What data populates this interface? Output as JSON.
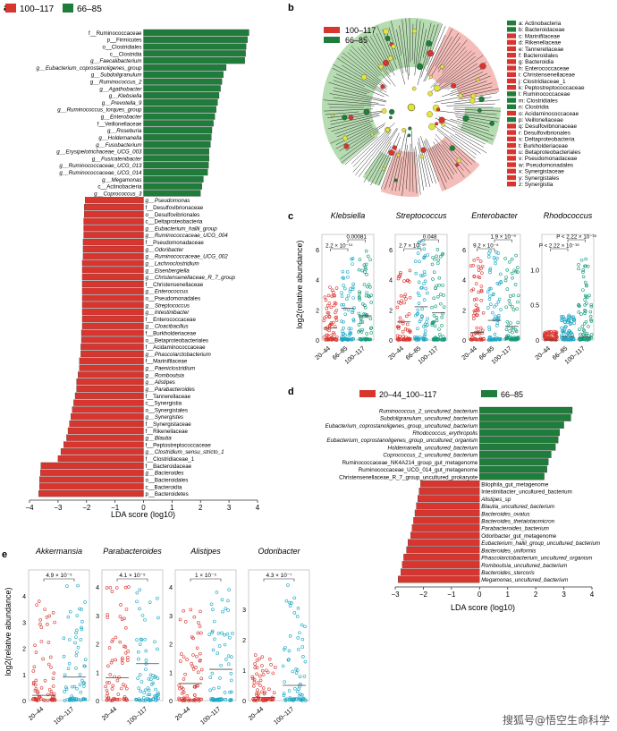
{
  "colors": {
    "red": "#d9352f",
    "green": "#1e7d3a",
    "blue": "#1aa6c4",
    "teal": "#12997a",
    "redLight": "#f2b2ad",
    "greenLight": "#a9d6a3",
    "yellow": "#e4e33a"
  },
  "watermark": "搜狐号@悟空生命科学",
  "panel_a": {
    "letter": "a",
    "legend": [
      "100–117",
      "66–85"
    ],
    "xlabel": "LDA score (log10)",
    "ticks": [
      "−4",
      "−3",
      "−2",
      "−1",
      "0",
      "1",
      "2",
      "3",
      "4"
    ]
  },
  "panel_b": {
    "letter": "b",
    "legend": [
      "100–117",
      "66–85"
    ],
    "key": [
      {
        "t": "a: Actinobacteria",
        "c": "green"
      },
      {
        "t": "b: Bacteroidaceae",
        "c": "green"
      },
      {
        "t": "c: Marinifilaceae",
        "c": "red"
      },
      {
        "t": "d: Rikenellaceae",
        "c": "red"
      },
      {
        "t": "e: Tannerellaceae",
        "c": "red"
      },
      {
        "t": "f: Bacteroidales",
        "c": "red"
      },
      {
        "t": "g: Bacteroidia",
        "c": "red"
      },
      {
        "t": "h: Enterococcaceae",
        "c": "red"
      },
      {
        "t": "i: Christensenellaceae",
        "c": "red"
      },
      {
        "t": "j: Clostridiaceae_1",
        "c": "red"
      },
      {
        "t": "k: Peptostreptococcaceae",
        "c": "red"
      },
      {
        "t": "l: Ruminococcaceae",
        "c": "green"
      },
      {
        "t": "m: Clostridiales",
        "c": "green"
      },
      {
        "t": "n: Clostridia",
        "c": "green"
      },
      {
        "t": "o: Acidaminococcaceae",
        "c": "red"
      },
      {
        "t": "p: Veillonellaceae",
        "c": "green"
      },
      {
        "t": "q: Desulfovibrionaceae",
        "c": "red"
      },
      {
        "t": "r: Desulfovibrionales",
        "c": "red"
      },
      {
        "t": "s: Deltaproteobacteria",
        "c": "red"
      },
      {
        "t": "t: Burkholderiaceae",
        "c": "red"
      },
      {
        "t": "u: Betaproteobacteriales",
        "c": "red"
      },
      {
        "t": "v: Pseudomonadaceae",
        "c": "red"
      },
      {
        "t": "w: Pseudomonadales",
        "c": "red"
      },
      {
        "t": "x: Synergistaceae",
        "c": "red"
      },
      {
        "t": "y: Synergistales",
        "c": "red"
      },
      {
        "t": "z: Synergistia",
        "c": "red"
      }
    ]
  },
  "panel_d": {
    "letter": "d",
    "legend": [
      "20–44_100–117",
      "66–85"
    ],
    "xlabel": "LDA score (log10)",
    "ticks": [
      "−3",
      "−2",
      "−1",
      "0",
      "1",
      "2",
      "3",
      "4"
    ]
  },
  "panel_c": {
    "letter": "c",
    "ylabel": "log2(relative abundance)",
    "groups": [
      "20–44",
      "66–85",
      "100–117"
    ],
    "subplots": [
      {
        "title": "Klebsiella",
        "ymax": 7,
        "ticks": [
          "0",
          "2",
          "4",
          "6"
        ],
        "tickVals": [
          0,
          2,
          4,
          6
        ],
        "pvals": [
          "2.2 × 10⁻¹⁴",
          "0.00081"
        ]
      },
      {
        "title": "Streptococcus",
        "ymax": 7,
        "ticks": [
          "0",
          "2",
          "4",
          "6"
        ],
        "tickVals": [
          0,
          2,
          4,
          6
        ],
        "pvals": [
          "2.7 × 10⁻¹⁰",
          "0.048"
        ]
      },
      {
        "title": "Enterobacter",
        "ymax": 7,
        "ticks": [
          "0",
          "2",
          "4",
          "6"
        ],
        "tickVals": [
          0,
          2,
          4,
          6
        ],
        "pvals": [
          "9.2 × 10⁻⁵",
          "1.9 × 10⁻⁹"
        ]
      },
      {
        "title": "Rhodococcus",
        "ymax": 1.5,
        "ticks": [
          "0",
          "0.5",
          "1.0"
        ],
        "tickVals": [
          0,
          0.5,
          1.0
        ],
        "pvals": [
          "P < 2.22 × 10⁻¹⁶",
          "P < 2.22 × 10⁻¹⁶"
        ]
      }
    ]
  },
  "panel_e": {
    "letter": "e",
    "ylabel": "log2(relative abundance)",
    "groups": [
      "20–44",
      "100–117"
    ],
    "subplots": [
      {
        "title": "Akkermansia",
        "ymax": 5,
        "ticks": [
          "0",
          "1",
          "2",
          "3",
          "4"
        ],
        "tickVals": [
          0,
          1,
          2,
          3,
          4
        ],
        "pval": "4.9 × 10⁻⁵"
      },
      {
        "title": "Parabacteroides",
        "ymax": 4.6,
        "ticks": [
          "0",
          "1",
          "2",
          "3",
          "4"
        ],
        "tickVals": [
          0,
          1,
          2,
          3,
          4
        ],
        "pval": "4.1 × 10⁻⁵"
      },
      {
        "title": "Alistipes",
        "ymax": 4.6,
        "ticks": [
          "0",
          "1",
          "2",
          "3",
          "4"
        ],
        "tickVals": [
          0,
          1,
          2,
          3,
          4
        ],
        "pval": "1 × 10⁻⁵"
      },
      {
        "title": "Odoribacter",
        "ymax": 4.3,
        "ticks": [
          "0",
          "1",
          "2",
          "3"
        ],
        "tickVals": [
          0,
          1,
          2,
          3
        ],
        "pval": "4.3 × 10⁻⁷"
      }
    ]
  },
  "chart_data": [
    {
      "type": "bar",
      "panel": "a",
      "xlabel": "LDA score (log10)",
      "xlim": [
        -4,
        4
      ],
      "series_names": [
        "100–117",
        "66–85"
      ],
      "categories": [
        "f__Ruminococcaceae",
        "p__Firmicutes",
        "o__Clostridiales",
        "c__Clostridia",
        "g__Faecalibacterium",
        "g__Eubacterium_coprostanoligenes_group",
        "g__Subdoligranulum",
        "g__Ruminococcus_2",
        "g__Agathobacter",
        "g__Klebsiella",
        "g__Prevotella_9",
        "g__Ruminococcus_torques_group",
        "g__Enterobacter",
        "f__Veillonellaceae",
        "g__Roseburia",
        "g__Holdemanella",
        "g__Fusobacterium",
        "g__Erysipelotrichaceae_UCG_003",
        "g__Fusicatenibacter",
        "g__Ruminococcaceae_UCG_013",
        "g__Ruminococcaceae_UCG_014",
        "g__Megamonas",
        "c__Actinobacteria",
        "g__Coprococcus_3",
        "g__Pseudomonas",
        "f__Desulfovibrionaceae",
        "o__Desulfovibrionales",
        "c__Deltaproteobacteria",
        "g__Eubacterium_hallii_group",
        "g__Ruminococcaceae_UCG_004",
        "f__Pseudomonadaceae",
        "g__Odoribacter",
        "g__Ruminococcaceae_UCG_002",
        "g__Lachnoclostridium",
        "g__Eisenbergiella",
        "g__Christensenellaceae_R_7_group",
        "f__Christensenellaceae",
        "g__Enterococcus",
        "o__Pseudomonadales",
        "g__Streptococcus",
        "g__Intestinibacter",
        "f__Enterococcaceae",
        "g__Cloacibacillus",
        "f__Burkholderiaceae",
        "o__Betaproteobacteriales",
        "f__Acidaminococcaceae",
        "g__Phascolarctobacterium",
        "f__Marinifilaceae",
        "g__Paeniclostridium",
        "g__Romboutsia",
        "g__Alistipes",
        "g__Parabacteroides",
        "f__Tannerellaceae",
        "c__Synergistia",
        "o__Synergistales",
        "g__Synergistes",
        "f__Synergistaceae",
        "f__Rikenellaceae",
        "g__Blautia",
        "f__Peptostreptococcaceae",
        "g__Clostridium_sensu_stricto_1",
        "f__Clostridiaceae_1",
        "f__Bacteroidaceae",
        "g__Bacteroides",
        "o__Bacteroidales",
        "c__Bacteroidia",
        "p__Bacteroidetes"
      ],
      "values": [
        3.7,
        3.65,
        3.6,
        3.58,
        3.55,
        2.9,
        2.8,
        2.75,
        2.7,
        2.65,
        2.6,
        2.55,
        2.5,
        2.45,
        2.4,
        2.38,
        2.35,
        2.3,
        2.3,
        2.28,
        2.25,
        2.1,
        2.05,
        2.0,
        -2.05,
        -2.08,
        -2.08,
        -2.1,
        -2.1,
        -2.1,
        -2.12,
        -2.12,
        -2.12,
        -2.15,
        -2.15,
        -2.15,
        -2.15,
        -2.15,
        -2.15,
        -2.15,
        -2.15,
        -2.15,
        -2.15,
        -2.18,
        -2.18,
        -2.2,
        -2.2,
        -2.25,
        -2.25,
        -2.3,
        -2.35,
        -2.35,
        -2.4,
        -2.45,
        -2.5,
        -2.55,
        -2.6,
        -2.65,
        -2.7,
        -2.8,
        -2.9,
        -3.0,
        -3.6,
        -3.62,
        -3.65,
        -3.65,
        -3.68
      ]
    },
    {
      "type": "bar",
      "panel": "d",
      "xlabel": "LDA score (log10)",
      "xlim": [
        -3,
        4
      ],
      "series_names": [
        "20–44_100–117",
        "66–85"
      ],
      "categories": [
        "Ruminococcus_2_uncultured_bacterium",
        "Subdoligranulum_uncultured_bacterium",
        "Eubacterium_coprostanoligenes_group_uncultured_bacterium",
        "Rhodococcus_erythropolis",
        "Eubacterium_coprostanoligenes_group_uncultured_organism",
        "Holdemanella_uncultured_bacterium",
        "Coprococcus_2_uncultured_bacterium",
        "Ruminococcaceae_NK4A214_group_gut_metagenome",
        "Ruminococcaceae_UCG_014_gut_metagenome",
        "Christensenellaceae_R_7_group_uncultured_prokaryote",
        "Bilophila_gut_metagenome",
        "Intestinibacter_uncultured_bacterium",
        "Alistipes_sp",
        "Blautia_uncultured_bacterium",
        "Bacteroides_ovatus",
        "Bacteroides_thetaiotaomicron",
        "Parabacteroides_bacterium",
        "Odoribacter_gut_metagenome",
        "Eubacterium_hallii_group_uncultured_bacterium",
        "Bacteroides_uniformis",
        "Phascolarctobacterium_uncultured_organism",
        "Romboutsia_uncultured_bacterium",
        "Bacteroides_stercoris",
        "Megamonas_uncultured_bacterium"
      ],
      "italic": [
        true,
        true,
        true,
        true,
        true,
        true,
        true,
        false,
        false,
        false,
        false,
        false,
        true,
        true,
        true,
        true,
        true,
        false,
        true,
        true,
        true,
        true,
        true,
        true
      ],
      "values": [
        3.3,
        3.25,
        3.0,
        2.85,
        2.8,
        2.7,
        2.55,
        2.45,
        2.4,
        2.3,
        -2.1,
        -2.15,
        -2.2,
        -2.25,
        -2.3,
        -2.35,
        -2.4,
        -2.45,
        -2.55,
        -2.6,
        -2.7,
        -2.75,
        -2.8,
        -2.9
      ]
    },
    {
      "type": "scatter",
      "panel": "c",
      "ylabel": "log2(relative abundance)",
      "groups": [
        "20–44",
        "66–85",
        "100–117"
      ],
      "subplots": [
        {
          "title": "Klebsiella",
          "median": [
            0.8,
            2.1,
            1.6
          ],
          "max": [
            3.5,
            5.4,
            5.9
          ],
          "ylim": [
            0,
            7
          ]
        },
        {
          "title": "Streptococcus",
          "median": [
            1.2,
            2.2,
            1.8
          ],
          "max": [
            4.6,
            6.6,
            6.0
          ],
          "ylim": [
            0,
            7
          ]
        },
        {
          "title": "Enterobacter",
          "median": [
            0.5,
            1.3,
            0.9
          ],
          "max": [
            5.4,
            5.9,
            5.6
          ],
          "ylim": [
            0,
            7
          ]
        },
        {
          "title": "Rhodococcus",
          "median": [
            0.0,
            0.05,
            0.04
          ],
          "max": [
            0.12,
            0.35,
            1.15
          ],
          "ylim": [
            0,
            1.5
          ]
        }
      ]
    },
    {
      "type": "scatter",
      "panel": "e",
      "ylabel": "log2(relative abundance)",
      "groups": [
        "20–44",
        "100–117"
      ],
      "subplots": [
        {
          "title": "Akkermansia",
          "median": [
            0.2,
            0.9
          ],
          "max": [
            3.8,
            4.4
          ],
          "ylim": [
            0,
            5
          ]
        },
        {
          "title": "Parabacteroides",
          "median": [
            0.8,
            1.3
          ],
          "max": [
            4.0,
            3.9
          ],
          "ylim": [
            0,
            4.6
          ]
        },
        {
          "title": "Alistipes",
          "median": [
            0.6,
            1.1
          ],
          "max": [
            3.2,
            3.9
          ],
          "ylim": [
            0,
            4.6
          ]
        },
        {
          "title": "Odoribacter",
          "median": [
            0.1,
            0.5
          ],
          "max": [
            1.5,
            3.8
          ],
          "ylim": [
            0,
            4.3
          ]
        }
      ]
    }
  ]
}
